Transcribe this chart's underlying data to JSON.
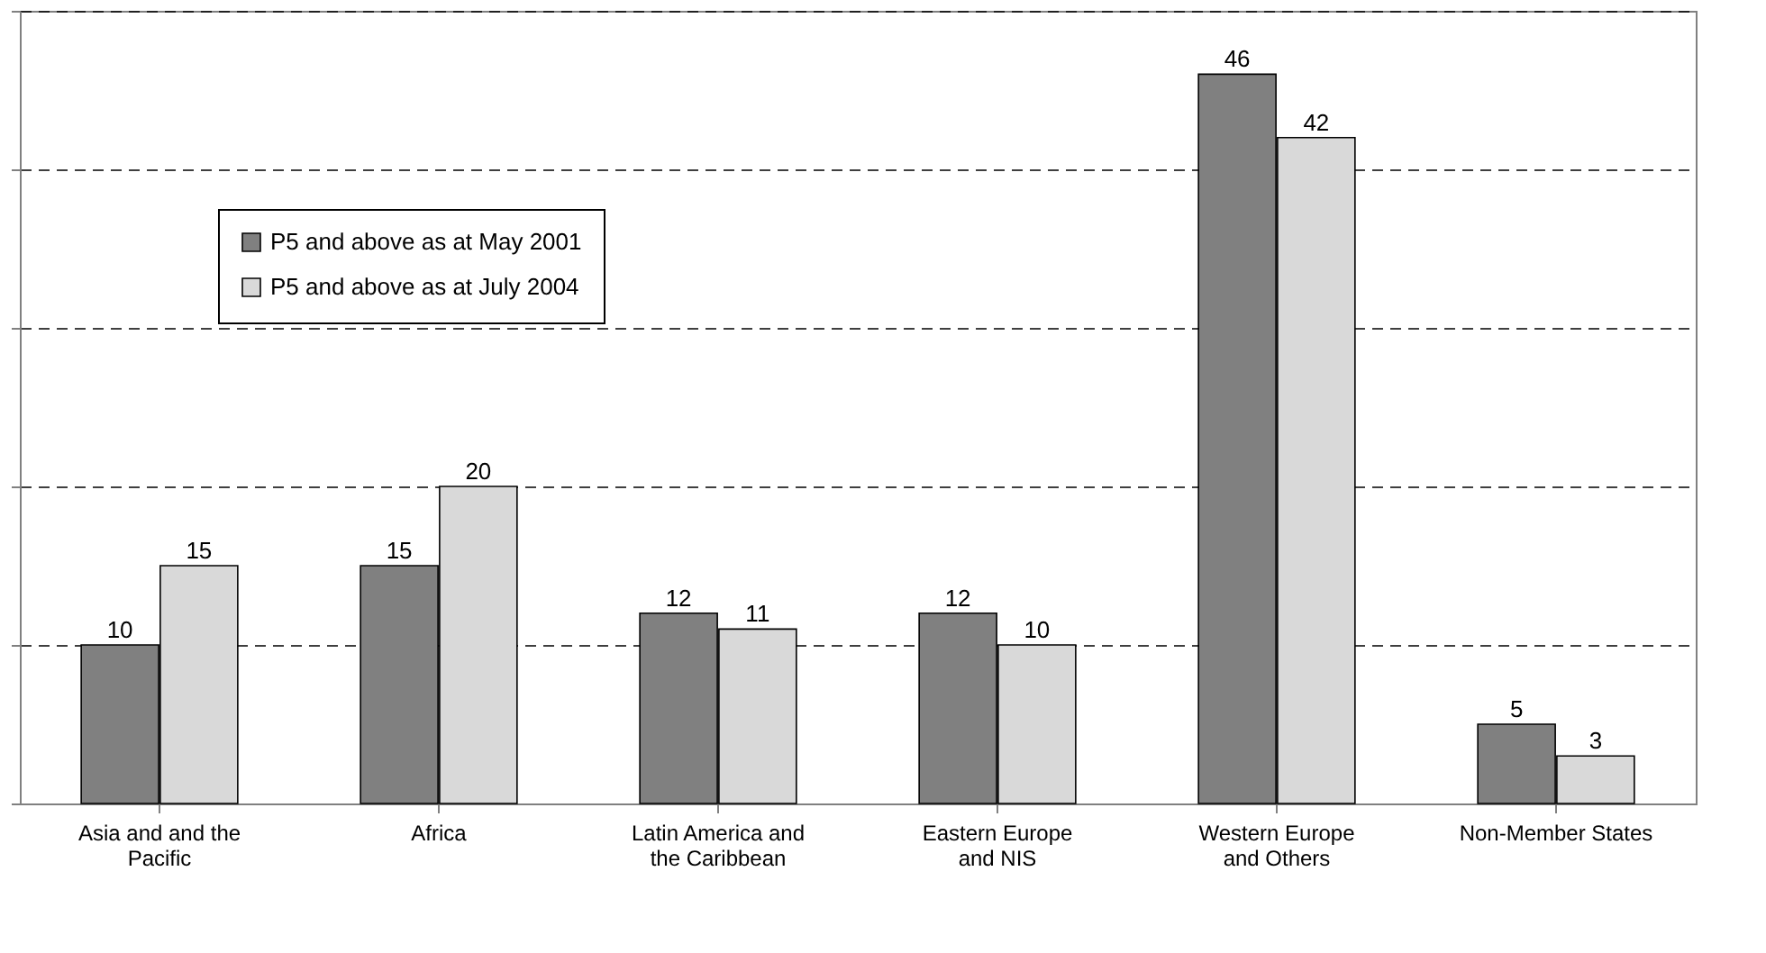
{
  "chart_data": {
    "type": "bar",
    "categories": [
      "Asia and and the Pacific",
      "Africa",
      "Latin America and the Caribbean",
      "Eastern Europe and NIS",
      "Western Europe and Others",
      "Non-Member States"
    ],
    "series": [
      {
        "name": "P5 and above as at May 2001",
        "color": "#808080",
        "values": [
          10,
          15,
          12,
          12,
          46,
          5
        ]
      },
      {
        "name": "P5 and above as at July 2004",
        "color": "#d9d9d9",
        "values": [
          15,
          20,
          11,
          10,
          42,
          3
        ]
      }
    ],
    "ylim": [
      0,
      50
    ],
    "yticks": [
      {
        "value": 0,
        "label": null
      },
      {
        "value": 10,
        "label": null
      },
      {
        "value": 20,
        "label": null
      },
      {
        "value": 30,
        "label": null
      },
      {
        "value": 40,
        "label": null
      },
      {
        "value": 50,
        "label": null
      }
    ],
    "grid": "y",
    "line_style": "dashed",
    "legend": "top left",
    "data_labels": true,
    "tick_labels": "x"
  }
}
